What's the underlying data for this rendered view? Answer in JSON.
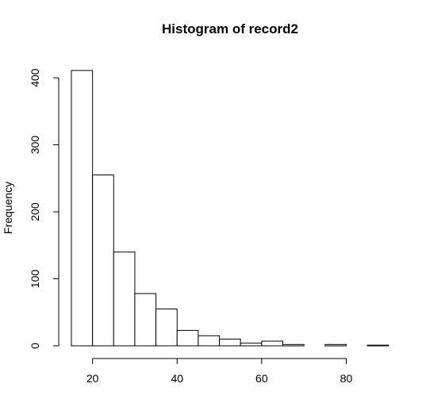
{
  "chart_data": {
    "type": "bar",
    "title": "Histogram of record2",
    "xlabel": "",
    "ylabel": "Frequency",
    "bin_edges": [
      15,
      20,
      25,
      30,
      35,
      40,
      45,
      50,
      55,
      60,
      65,
      70,
      75,
      80,
      85,
      90
    ],
    "values": [
      411,
      255,
      140,
      78,
      55,
      23,
      15,
      10,
      4,
      7,
      2,
      0,
      2,
      0,
      1
    ],
    "xlim": [
      15,
      90
    ],
    "ylim": [
      0,
      415
    ],
    "x_ticks": [
      "20",
      "40",
      "60",
      "80"
    ],
    "y_ticks": [
      "0",
      "100",
      "200",
      "300",
      "400"
    ],
    "grid": false,
    "colors": {
      "bar_fill": "#ffffff",
      "bar_stroke": "#000000"
    }
  }
}
